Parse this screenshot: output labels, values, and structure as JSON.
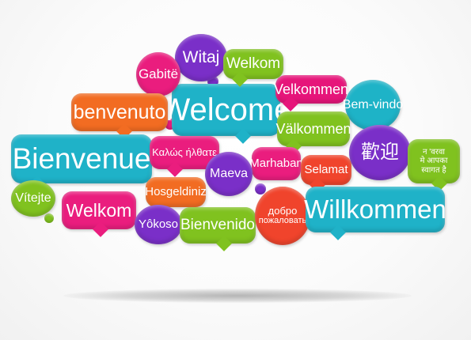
{
  "bubbles": [
    {
      "key": "witaj",
      "text": "Witaj",
      "color": "#7a2fc8"
    },
    {
      "key": "gabite",
      "text": "Gabitë",
      "color": "#ea1d7e"
    },
    {
      "key": "welkom_top",
      "text": "Welkom",
      "color": "#80c21f"
    },
    {
      "key": "benvenuto",
      "text": "benvenuto",
      "color": "#f26c22"
    },
    {
      "key": "welcome",
      "text": "Welcome",
      "color": "#1fb2c8"
    },
    {
      "key": "velkommen",
      "text": "Velkommen",
      "color": "#e6157a"
    },
    {
      "key": "bem_vindo",
      "text": "Bem-vindo",
      "color": "#1eb3c7"
    },
    {
      "key": "valkommen",
      "text": "Välkommen",
      "color": "#80c21f"
    },
    {
      "key": "bienvenue",
      "text": "Bienvenue",
      "color": "#1fb2c8"
    },
    {
      "key": "kalos",
      "text": "Καλώς ήλθατε",
      "color": "#ea1d7e"
    },
    {
      "key": "marhaban",
      "text": "Marhaban",
      "color": "#ea1d7e"
    },
    {
      "key": "maeva",
      "text": "Maeva",
      "color": "#7a2fc8"
    },
    {
      "key": "selamat",
      "text": "Selamat",
      "color": "#f0442c"
    },
    {
      "key": "kangei",
      "text": "歡迎",
      "color": "#7a2fc8"
    },
    {
      "key": "hindi_line1",
      "text": "न 'वरवा",
      "color": "#80c21f"
    },
    {
      "key": "hindi_line2",
      "text": "मे आपका",
      "color": "#80c21f"
    },
    {
      "key": "hindi_line3",
      "text": "स्वागत है",
      "color": "#80c21f"
    },
    {
      "key": "vitejte",
      "text": "Vítejte",
      "color": "#80c21f"
    },
    {
      "key": "hosgeldiniz",
      "text": "Hosgeldiniz",
      "color": "#f26c22"
    },
    {
      "key": "welkom_bottom",
      "text": "Welkom",
      "color": "#ea1d7e"
    },
    {
      "key": "yokoso",
      "text": "Yôkoso",
      "color": "#7a2fc8"
    },
    {
      "key": "bienvenido",
      "text": "Bienvenido",
      "color": "#80c21f"
    },
    {
      "key": "dobro_line1",
      "text": "добро",
      "color": "#f0442c"
    },
    {
      "key": "dobro_line2",
      "text": "пожаловать",
      "color": "#f0442c"
    },
    {
      "key": "willkommen",
      "text": "Willkommen",
      "color": "#1fb2c8"
    }
  ],
  "palette": {
    "cyan": "#1fb2c8",
    "magenta": "#ea1d7e",
    "green": "#80c21f",
    "purple": "#7a2fc8",
    "orange": "#f26c22",
    "red": "#f0442c"
  }
}
